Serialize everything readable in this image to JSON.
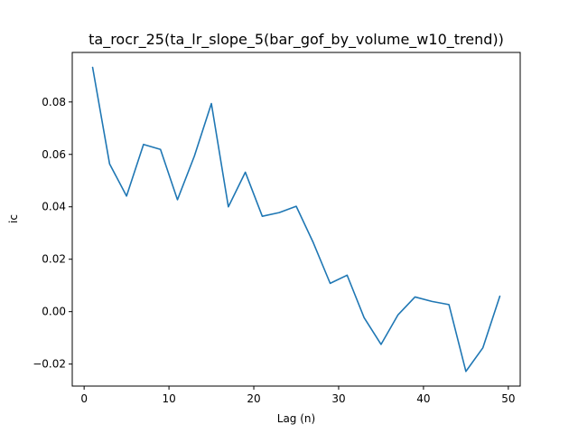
{
  "chart_data": {
    "type": "line",
    "title": "ta_rocr_25(ta_lr_slope_5(bar_gof_by_volume_w10_trend))",
    "xlabel": "Lag (n)",
    "ylabel": "ic",
    "xlim": [
      -1.4,
      51.4
    ],
    "ylim": [
      -0.0284,
      0.0989
    ],
    "xticks": [
      0,
      10,
      20,
      30,
      40,
      50
    ],
    "yticks": [
      -0.02,
      0.0,
      0.02,
      0.04,
      0.06,
      0.08
    ],
    "xtick_labels": [
      "0",
      "10",
      "20",
      "30",
      "40",
      "50"
    ],
    "ytick_labels": [
      "−0.02",
      "0.00",
      "0.02",
      "0.04",
      "0.06",
      "0.08"
    ],
    "grid": false,
    "series": [
      {
        "color": "#1f77b4",
        "x": [
          1,
          3,
          5,
          7,
          9,
          11,
          13,
          15,
          17,
          19,
          21,
          23,
          25,
          27,
          29,
          31,
          33,
          35,
          37,
          39,
          41,
          43,
          45,
          47,
          49
        ],
        "y": [
          0.0932,
          0.0564,
          0.0441,
          0.0638,
          0.0619,
          0.0427,
          0.0594,
          0.0794,
          0.04,
          0.0532,
          0.0364,
          0.0378,
          0.0402,
          0.0264,
          0.0108,
          0.0139,
          -0.0023,
          -0.0125,
          -0.0012,
          0.0056,
          0.0039,
          0.0027,
          -0.0228,
          -0.0138,
          0.0059
        ]
      }
    ]
  }
}
